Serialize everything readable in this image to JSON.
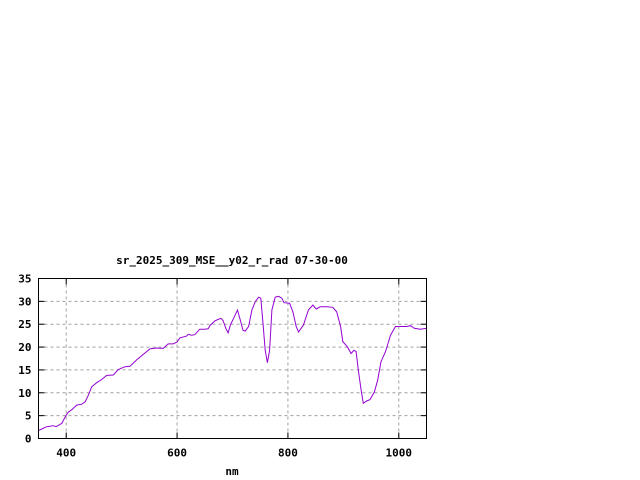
{
  "chart_data": {
    "type": "line",
    "title": "sr_2025_309_MSE__y02_r_rad 07-30-00",
    "xlabel": "nm",
    "ylabel": "",
    "xlim": [
      350,
      1050
    ],
    "ylim": [
      0,
      35
    ],
    "xticks": [
      400,
      600,
      800,
      1000
    ],
    "yticks": [
      0,
      5,
      10,
      15,
      20,
      25,
      30,
      35
    ],
    "grid": true,
    "line_color": "#9400d3",
    "series": [
      {
        "x": [
          350,
          364,
          376,
          382,
          392,
          398,
          404,
          410,
          419,
          428,
          434,
          440,
          446,
          455,
          464,
          473,
          485,
          494,
          506,
          515,
          527,
          539,
          551,
          563,
          575,
          584,
          593,
          600,
          605,
          617,
          620,
          626,
          632,
          641,
          650,
          656,
          660,
          669,
          679,
          683,
          688,
          692,
          696,
          702,
          709,
          714,
          719,
          723,
          729,
          735,
          741,
          747,
          751,
          755,
          759,
          763,
          767,
          771,
          777,
          783,
          789,
          793,
          803,
          809,
          815,
          819,
          828,
          837,
          845,
          851,
          858,
          870,
          881,
          888,
          895,
          899,
          907,
          914,
          919,
          923,
          927,
          932,
          936,
          942,
          948,
          956,
          962,
          968,
          976,
          985,
          994,
          1006,
          1015,
          1021,
          1028,
          1039,
          1050
        ],
        "y": [
          1.75,
          2.55,
          2.8,
          2.6,
          3.3,
          4.7,
          5.8,
          6.3,
          7.3,
          7.5,
          8.0,
          9.5,
          11.3,
          12.2,
          12.9,
          13.8,
          13.9,
          15.1,
          15.7,
          15.8,
          17.2,
          18.4,
          19.6,
          19.8,
          19.7,
          20.7,
          20.7,
          21.1,
          22.0,
          22.4,
          22.8,
          22.6,
          22.7,
          23.9,
          23.9,
          24.0,
          24.8,
          25.8,
          26.3,
          25.8,
          24.1,
          23.1,
          24.8,
          26.3,
          28.1,
          25.9,
          23.7,
          23.5,
          24.5,
          28.1,
          29.9,
          30.9,
          30.7,
          25.2,
          19.3,
          16.6,
          19.3,
          28.1,
          30.9,
          31.1,
          30.7,
          29.7,
          29.6,
          27.7,
          24.5,
          23.3,
          24.8,
          28.1,
          29.2,
          28.3,
          28.8,
          28.8,
          28.7,
          27.7,
          24.5,
          21.2,
          20.1,
          18.6,
          19.3,
          19.0,
          15.0,
          10.6,
          7.7,
          8.2,
          8.5,
          10.2,
          12.8,
          16.8,
          19.0,
          22.6,
          24.5,
          24.5,
          24.5,
          24.7,
          24.1,
          23.9,
          24.1
        ]
      }
    ]
  }
}
